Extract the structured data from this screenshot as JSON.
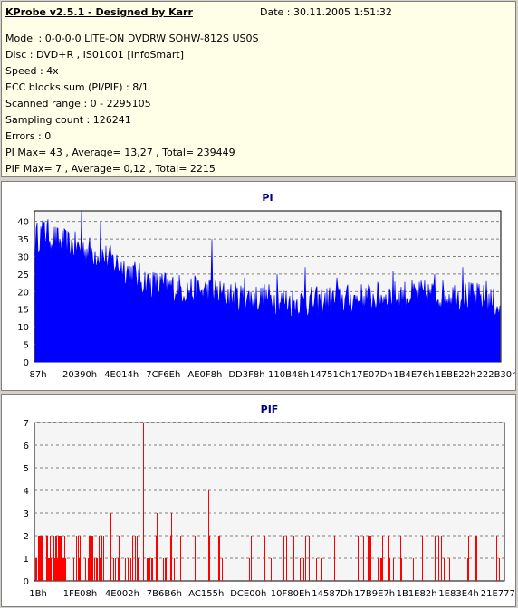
{
  "header": {
    "title": "KProbe v2.5.1 - Designed by Karr",
    "date": "Date : 30.11.2005 1:51:32"
  },
  "info_lines": [
    "Model : 0-0-0-0 LITE-ON DVDRW SOHW-812S  US0S",
    "Disc : DVD+R , IS01001 [InfoSmart]",
    "Speed : 4x",
    "ECC blocks sum (PI/PIF) : 8/1",
    "Scanned range : 0 - 2295105",
    "Sampling count : 126241",
    "Errors : 0",
    "PI Max= 43 , Average= 13,27 , Total= 239449",
    "PIF Max= 7 , Average= 0,12 , Total= 2215"
  ],
  "colors": {
    "pi_fill": "#0000ff",
    "pif_bar": "#ff0000",
    "title_text": "#000080",
    "plot_bg": "#f5f5f5"
  },
  "chart_data": [
    {
      "type": "area",
      "title": "PI",
      "xlabel": "",
      "ylabel": "",
      "ylim": [
        0,
        43
      ],
      "yticks": [
        0,
        5,
        10,
        15,
        20,
        25,
        30,
        35,
        40
      ],
      "xtick_labels": [
        "87h",
        "20390h",
        "4E014h",
        "7CF6Eh",
        "AE0F8h",
        "DD3F8h",
        "110B48h",
        "14751Ch",
        "17E07Dh",
        "1B4E76h",
        "1EBE22h",
        "222B30h"
      ],
      "grid": true,
      "series": [
        {
          "x_range": [
            0,
            2295105
          ],
          "profile": [
            [
              0,
              35
            ],
            [
              0.02,
              37
            ],
            [
              0.05,
              34
            ],
            [
              0.08,
              33
            ],
            [
              0.1,
              32
            ],
            [
              0.13,
              31
            ],
            [
              0.16,
              29
            ],
            [
              0.2,
              26
            ],
            [
              0.22,
              24
            ],
            [
              0.25,
              22
            ],
            [
              0.3,
              21
            ],
            [
              0.35,
              20
            ],
            [
              0.38,
              20
            ],
            [
              0.4,
              19
            ],
            [
              0.45,
              18
            ],
            [
              0.5,
              18
            ],
            [
              0.55,
              17
            ],
            [
              0.6,
              17
            ],
            [
              0.7,
              18
            ],
            [
              0.8,
              19
            ],
            [
              0.9,
              19
            ],
            [
              0.96,
              18
            ],
            [
              1,
              16
            ]
          ],
          "spikes": [
            [
              0.1,
              43
            ],
            [
              0.02,
              40
            ],
            [
              0.14,
              40
            ],
            [
              0.38,
              35
            ],
            [
              0.52,
              25
            ],
            [
              0.58,
              27
            ],
            [
              0.77,
              26
            ],
            [
              0.92,
              27
            ],
            [
              0.86,
              25
            ],
            [
              0.45,
              24
            ],
            [
              0.65,
              24
            ],
            [
              0.97,
              23
            ],
            [
              1,
              16
            ]
          ]
        }
      ]
    },
    {
      "type": "bar",
      "title": "PIF",
      "xlabel": "",
      "ylabel": "",
      "ylim": [
        0,
        7
      ],
      "yticks": [
        0,
        1,
        2,
        3,
        4,
        5,
        6,
        7
      ],
      "xtick_labels": [
        "1Bh",
        "1FE08h",
        "4E002h",
        "7B6B6h",
        "AC155h",
        "DCE00h",
        "10F80Eh",
        "14587Dh",
        "17B9E7h",
        "1B1E82h",
        "1E83E4h",
        "21E777h"
      ],
      "grid": true,
      "series": [
        {
          "x_range": [
            0,
            2295105
          ],
          "spikes": [
            [
              0.23,
              7
            ],
            [
              0.37,
              4
            ],
            [
              0.16,
              3
            ],
            [
              0.26,
              3
            ],
            [
              0.29,
              3
            ],
            [
              0.34,
              2
            ],
            [
              0.015,
              2
            ],
            [
              0.05,
              2
            ],
            [
              0.09,
              2
            ],
            [
              0.12,
              2
            ],
            [
              0.2,
              2
            ],
            [
              0.31,
              2
            ],
            [
              0.39,
              2
            ],
            [
              0.46,
              2
            ],
            [
              0.53,
              2
            ],
            [
              0.61,
              2
            ],
            [
              0.7,
              2
            ],
            [
              0.78,
              2
            ],
            [
              0.86,
              2
            ],
            [
              0.94,
              2
            ],
            [
              0.985,
              2
            ]
          ],
          "density_max": 1
        }
      ]
    }
  ]
}
